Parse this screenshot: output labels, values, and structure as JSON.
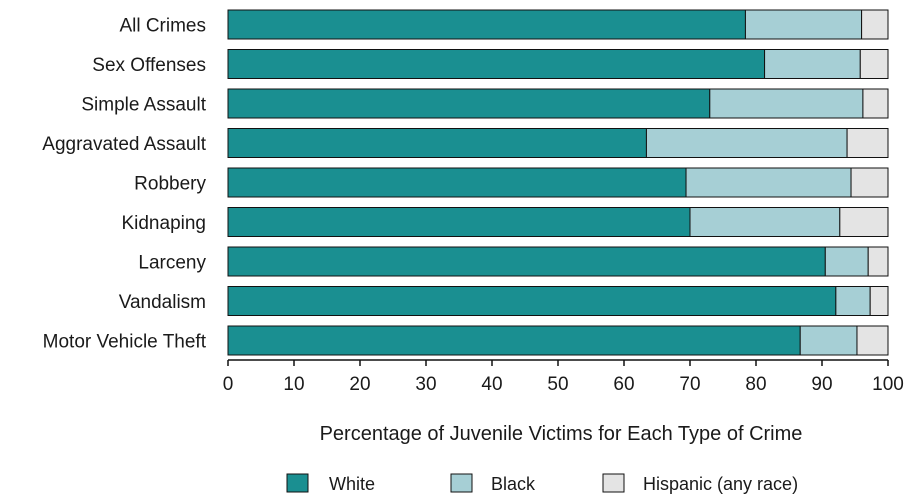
{
  "chart_data": {
    "type": "bar",
    "orientation": "horizontal",
    "stacked": true,
    "categories": [
      "All Crimes",
      "Sex Offenses",
      "Simple Assault",
      "Aggravated Assault",
      "Robbery",
      "Kidnaping",
      "Larceny",
      "Vandalism",
      "Motor Vehicle Theft"
    ],
    "series": [
      {
        "name": "White",
        "color": "#1a8f91",
        "values": [
          78.4,
          81.3,
          73.0,
          63.4,
          69.4,
          70.0,
          90.5,
          92.1,
          86.7
        ]
      },
      {
        "name": "Black",
        "color": "#a6cfd5",
        "values": [
          17.6,
          14.5,
          23.2,
          30.4,
          25.0,
          22.7,
          6.5,
          5.2,
          8.6
        ]
      },
      {
        "name": "Hispanic (any race)",
        "color": "#e4e4e4",
        "values": [
          4.0,
          4.2,
          3.8,
          6.2,
          5.6,
          7.3,
          3.0,
          2.7,
          4.7
        ]
      }
    ],
    "xlabel": "Percentage of Juvenile Victims for Each Type of Crime",
    "ylabel": "",
    "xlim": [
      0,
      100
    ],
    "xticks": [
      0,
      10,
      20,
      30,
      40,
      50,
      60,
      70,
      80,
      90,
      100
    ],
    "grid": false,
    "legend": "bottom"
  }
}
